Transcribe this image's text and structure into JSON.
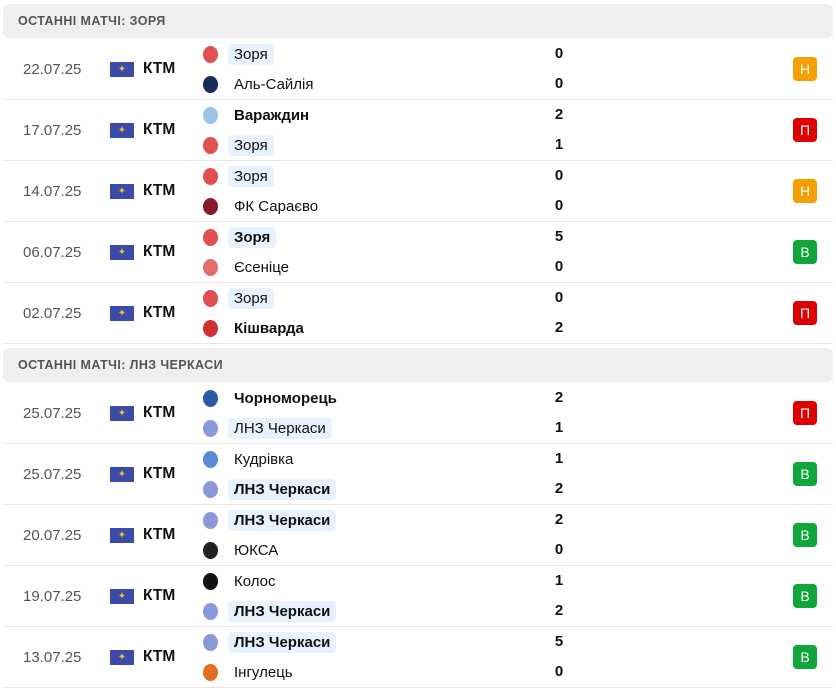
{
  "colors": {
    "draw": "#f5a000",
    "loss": "#dd0000",
    "win": "#11a63b"
  },
  "sections": [
    {
      "title": "ОСТАННІ МАТЧІ: ЗОРЯ",
      "matches": [
        {
          "date": "22.07.25",
          "comp": "КТМ",
          "home": "Зоря",
          "away": "Аль-Сайлія",
          "hs": "0",
          "as": "0",
          "hl": "home",
          "win": "",
          "result": "Н",
          "rc": "draw",
          "hlogo": "#e05050",
          "alogo": "#1a2a5a"
        },
        {
          "date": "17.07.25",
          "comp": "КТМ",
          "home": "Вараждин",
          "away": "Зоря",
          "hs": "2",
          "as": "1",
          "hl": "away",
          "win": "home",
          "result": "П",
          "rc": "loss",
          "hlogo": "#9cc4e8",
          "alogo": "#e05050"
        },
        {
          "date": "14.07.25",
          "comp": "КТМ",
          "home": "Зоря",
          "away": "ФК Сараєво",
          "hs": "0",
          "as": "0",
          "hl": "home",
          "win": "",
          "result": "Н",
          "rc": "draw",
          "hlogo": "#e05050",
          "alogo": "#8a1a2a"
        },
        {
          "date": "06.07.25",
          "comp": "КТМ",
          "home": "Зоря",
          "away": "Єсеніце",
          "hs": "5",
          "as": "0",
          "hl": "home",
          "win": "home",
          "result": "В",
          "rc": "win",
          "hlogo": "#e05050",
          "alogo": "#e07070"
        },
        {
          "date": "02.07.25",
          "comp": "КТМ",
          "home": "Зоря",
          "away": "Кішварда",
          "hs": "0",
          "as": "2",
          "hl": "home",
          "win": "away",
          "result": "П",
          "rc": "loss",
          "hlogo": "#e05050",
          "alogo": "#d03030"
        }
      ]
    },
    {
      "title": "ОСТАННІ МАТЧІ: ЛНЗ ЧЕРКАСИ",
      "matches": [
        {
          "date": "25.07.25",
          "comp": "КТМ",
          "home": "Чорноморець",
          "away": "ЛНЗ Черкаси",
          "hs": "2",
          "as": "1",
          "hl": "away",
          "win": "home",
          "result": "П",
          "rc": "loss",
          "hlogo": "#2a5aa8",
          "alogo": "#8a9ad8"
        },
        {
          "date": "25.07.25",
          "comp": "КТМ",
          "home": "Кудрівка",
          "away": "ЛНЗ Черкаси",
          "hs": "1",
          "as": "2",
          "hl": "away",
          "win": "away",
          "result": "В",
          "rc": "win",
          "hlogo": "#5a8ad0",
          "alogo": "#8a9ad8"
        },
        {
          "date": "20.07.25",
          "comp": "КТМ",
          "home": "ЛНЗ Черкаси",
          "away": "ЮКСА",
          "hs": "2",
          "as": "0",
          "hl": "home",
          "win": "home",
          "result": "В",
          "rc": "win",
          "hlogo": "#8a9ad8",
          "alogo": "#222222"
        },
        {
          "date": "19.07.25",
          "comp": "КТМ",
          "home": "Колос",
          "away": "ЛНЗ Черкаси",
          "hs": "1",
          "as": "2",
          "hl": "away",
          "win": "away",
          "result": "В",
          "rc": "win",
          "hlogo": "#111111",
          "alogo": "#8a9ad8"
        },
        {
          "date": "13.07.25",
          "comp": "КТМ",
          "home": "ЛНЗ Черкаси",
          "away": "Інгулець",
          "hs": "5",
          "as": "0",
          "hl": "home",
          "win": "home",
          "result": "В",
          "rc": "win",
          "hlogo": "#8a9ad8",
          "alogo": "#e07020"
        }
      ]
    }
  ]
}
